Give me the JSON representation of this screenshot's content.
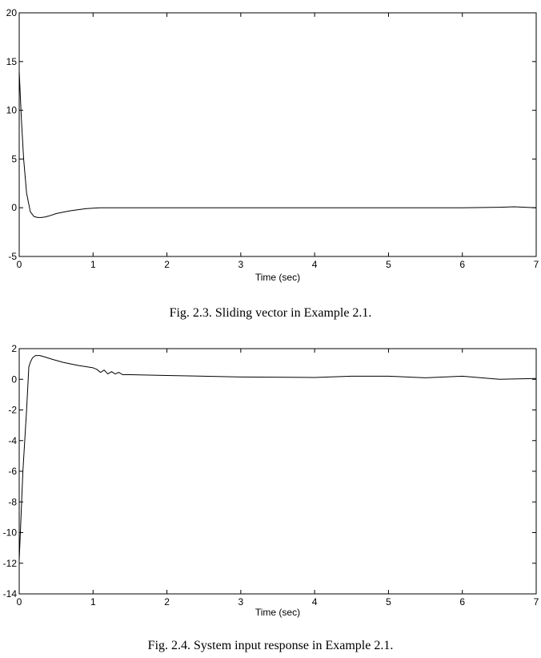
{
  "figures": [
    {
      "caption": "Fig. 2.3. Sliding vector in Example 2.1."
    },
    {
      "caption": "Fig. 2.4. System input response in Example 2.1."
    }
  ],
  "chart_data": [
    {
      "type": "line",
      "title": "",
      "xlabel": "Time (sec)",
      "ylabel": "",
      "xlim": [
        0,
        7
      ],
      "ylim": [
        -5,
        20
      ],
      "xticks": [
        0,
        1,
        2,
        3,
        4,
        5,
        6,
        7
      ],
      "yticks": [
        -5,
        0,
        5,
        10,
        15,
        20
      ],
      "grid": false,
      "series": [
        {
          "color": "#000000",
          "x": [
            0,
            0.03,
            0.06,
            0.1,
            0.15,
            0.2,
            0.25,
            0.3,
            0.35,
            0.4,
            0.5,
            0.6,
            0.7,
            0.8,
            0.9,
            1.0,
            1.1,
            1.5,
            2,
            3,
            4,
            5,
            6,
            6.5,
            6.7,
            7
          ],
          "y": [
            14,
            9,
            5,
            1.5,
            -0.4,
            -0.9,
            -1.0,
            -1.0,
            -0.95,
            -0.85,
            -0.6,
            -0.45,
            -0.3,
            -0.2,
            -0.1,
            -0.05,
            0,
            0,
            0,
            0,
            0,
            0,
            0,
            0.05,
            0.1,
            0
          ]
        }
      ]
    },
    {
      "type": "line",
      "title": "",
      "xlabel": "Time (sec)",
      "ylabel": "",
      "xlim": [
        0,
        7
      ],
      "ylim": [
        -14,
        2
      ],
      "xticks": [
        0,
        1,
        2,
        3,
        4,
        5,
        6,
        7
      ],
      "yticks": [
        -14,
        -12,
        -10,
        -8,
        -6,
        -4,
        -2,
        0,
        2
      ],
      "grid": false,
      "series": [
        {
          "color": "#000000",
          "x": [
            0,
            0.05,
            0.1,
            0.13,
            0.15,
            0.18,
            0.22,
            0.28,
            0.35,
            0.45,
            0.6,
            0.8,
            1.0,
            1.05,
            1.1,
            1.15,
            1.2,
            1.25,
            1.3,
            1.35,
            1.4,
            1.5,
            2,
            3,
            4,
            4.5,
            5,
            5.5,
            6,
            6.5,
            7
          ],
          "y": [
            -11.8,
            -6,
            -2,
            0.8,
            1.1,
            1.4,
            1.55,
            1.55,
            1.45,
            1.3,
            1.1,
            0.9,
            0.75,
            0.65,
            0.45,
            0.6,
            0.35,
            0.5,
            0.35,
            0.45,
            0.3,
            0.3,
            0.25,
            0.15,
            0.12,
            0.2,
            0.2,
            0.1,
            0.2,
            0.0,
            0.05
          ]
        }
      ]
    }
  ]
}
